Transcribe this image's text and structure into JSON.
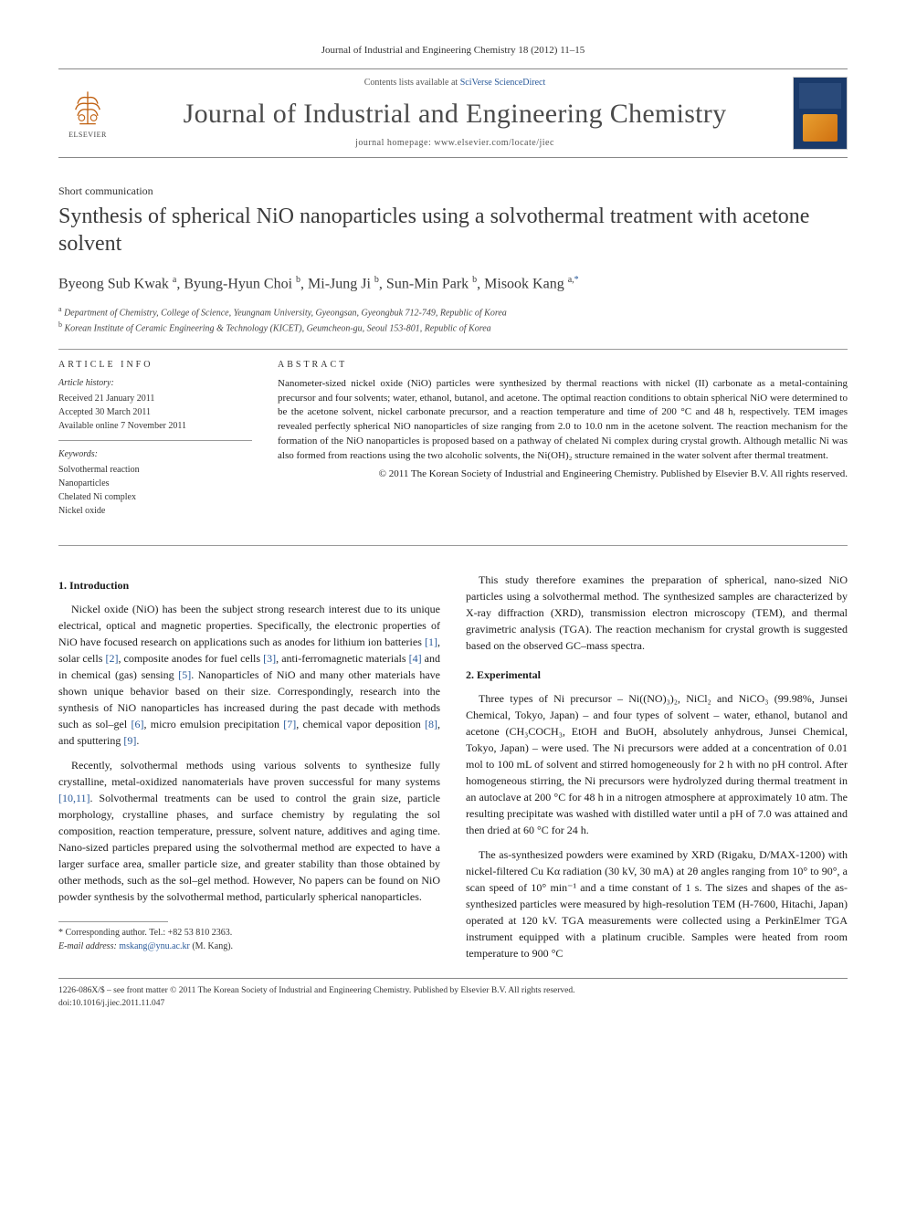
{
  "header": {
    "citation": "Journal of Industrial and Engineering Chemistry 18 (2012) 11–15",
    "contents_prefix": "Contents lists available at ",
    "contents_link": "SciVerse ScienceDirect",
    "journal_title": "Journal of Industrial and Engineering Chemistry",
    "homepage_prefix": "journal homepage: ",
    "homepage_url": "www.elsevier.com/locate/jiec",
    "publisher": "ELSEVIER"
  },
  "article": {
    "type": "Short communication",
    "title": "Synthesis of spherical NiO nanoparticles using a solvothermal treatment with acetone solvent",
    "authors_html": "Byeong Sub Kwak <sup>a</sup>, Byung-Hyun Choi <sup>b</sup>, Mi-Jung Ji <sup>b</sup>, Sun-Min Park <sup>b</sup>, Misook Kang <sup>a,</sup><sup class='corr'>*</sup>",
    "affiliations": [
      "Department of Chemistry, College of Science, Yeungnam University, Gyeongsan, Gyeongbuk 712-749, Republic of Korea",
      "Korean Institute of Ceramic Engineering & Technology (KICET), Geumcheon-gu, Seoul 153-801, Republic of Korea"
    ],
    "aff_markers": [
      "a",
      "b"
    ]
  },
  "info": {
    "head": "ARTICLE INFO",
    "history_label": "Article history:",
    "history": [
      "Received 21 January 2011",
      "Accepted 30 March 2011",
      "Available online 7 November 2011"
    ],
    "keywords_label": "Keywords:",
    "keywords": [
      "Solvothermal reaction",
      "Nanoparticles",
      "Chelated Ni complex",
      "Nickel oxide"
    ]
  },
  "abstract": {
    "head": "ABSTRACT",
    "text": "Nanometer-sized nickel oxide (NiO) particles were synthesized by thermal reactions with nickel (II) carbonate as a metal-containing precursor and four solvents; water, ethanol, butanol, and acetone. The optimal reaction conditions to obtain spherical NiO were determined to be the acetone solvent, nickel carbonate precursor, and a reaction temperature and time of 200 °C and 48 h, respectively. TEM images revealed perfectly spherical NiO nanoparticles of size ranging from 2.0 to 10.0 nm in the acetone solvent. The reaction mechanism for the formation of the NiO nanoparticles is proposed based on a pathway of chelated Ni complex during crystal growth. Although metallic Ni was also formed from reactions using the two alcoholic solvents, the Ni(OH)₂ structure remained in the water solvent after thermal treatment.",
    "copyright": "© 2011 The Korean Society of Industrial and Engineering Chemistry. Published by Elsevier B.V. All rights reserved."
  },
  "sections": {
    "intro_head": "1. Introduction",
    "intro_p1": "Nickel oxide (NiO) has been the subject strong research interest due to its unique electrical, optical and magnetic properties. Specifically, the electronic properties of NiO have focused research on applications such as anodes for lithium ion batteries [1], solar cells [2], composite anodes for fuel cells [3], anti-ferromagnetic materials [4] and in chemical (gas) sensing [5]. Nanoparticles of NiO and many other materials have shown unique behavior based on their size. Correspondingly, research into the synthesis of NiO nanoparticles has increased during the past decade with methods such as sol–gel [6], micro emulsion precipitation [7], chemical vapor deposition [8], and sputtering [9].",
    "intro_p2": "Recently, solvothermal methods using various solvents to synthesize fully crystalline, metal-oxidized nanomaterials have proven successful for many systems [10,11]. Solvothermal treatments can be used to control the grain size, particle morphology, crystalline phases, and surface chemistry by regulating the sol composition, reaction temperature, pressure, solvent nature, additives and aging time. Nano-sized particles prepared using the solvothermal method are expected to have a larger surface area, smaller particle size, and greater stability than those obtained by other methods, such as the sol–gel method. However, No papers can be found on NiO powder synthesis by the solvothermal method, particularly spherical nanoparticles.",
    "intro_p3": "This study therefore examines the preparation of spherical, nano-sized NiO particles using a solvothermal method. The synthesized samples are characterized by X-ray diffraction (XRD), transmission electron microscopy (TEM), and thermal gravimetric analysis (TGA). The reaction mechanism for crystal growth is suggested based on the observed GC–mass spectra.",
    "exp_head": "2. Experimental",
    "exp_p1": "Three types of Ni precursor – Ni((NO)₃)₂, NiCl₂ and NiCO₃ (99.98%, Junsei Chemical, Tokyo, Japan) – and four types of solvent – water, ethanol, butanol and acetone (CH₃COCH₃, EtOH and BuOH, absolutely anhydrous, Junsei Chemical, Tokyo, Japan) – were used. The Ni precursors were added at a concentration of 0.01 mol to 100 mL of solvent and stirred homogeneously for 2 h with no pH control. After homogeneous stirring, the Ni precursors were hydrolyzed during thermal treatment in an autoclave at 200 °C for 48 h in a nitrogen atmosphere at approximately 10 atm. The resulting precipitate was washed with distilled water until a pH of 7.0 was attained and then dried at 60 °C for 24 h.",
    "exp_p2": "The as-synthesized powders were examined by XRD (Rigaku, D/MAX-1200) with nickel-filtered Cu Kα radiation (30 kV, 30 mA) at 2θ angles ranging from 10° to 90°, a scan speed of 10° min⁻¹ and a time constant of 1 s. The sizes and shapes of the as-synthesized particles were measured by high-resolution TEM (H-7600, Hitachi, Japan) operated at 120 kV. TGA measurements were collected using a PerkinElmer TGA instrument equipped with a platinum crucible. Samples were heated from room temperature to 900 °C"
  },
  "footnotes": {
    "corr": "* Corresponding author. Tel.: +82 53 810 2363.",
    "email_label": "E-mail address: ",
    "email": "mskang@ynu.ac.kr",
    "email_suffix": " (M. Kang)."
  },
  "bottom": {
    "line1": "1226-086X/$ – see front matter © 2011 The Korean Society of Industrial and Engineering Chemistry. Published by Elsevier B.V. All rights reserved.",
    "line2": "doi:10.1016/j.jiec.2011.11.047"
  },
  "colors": {
    "link": "#2a5a9a",
    "text": "#1a1a1a",
    "muted": "#4a4a4a",
    "rule": "#888888"
  }
}
